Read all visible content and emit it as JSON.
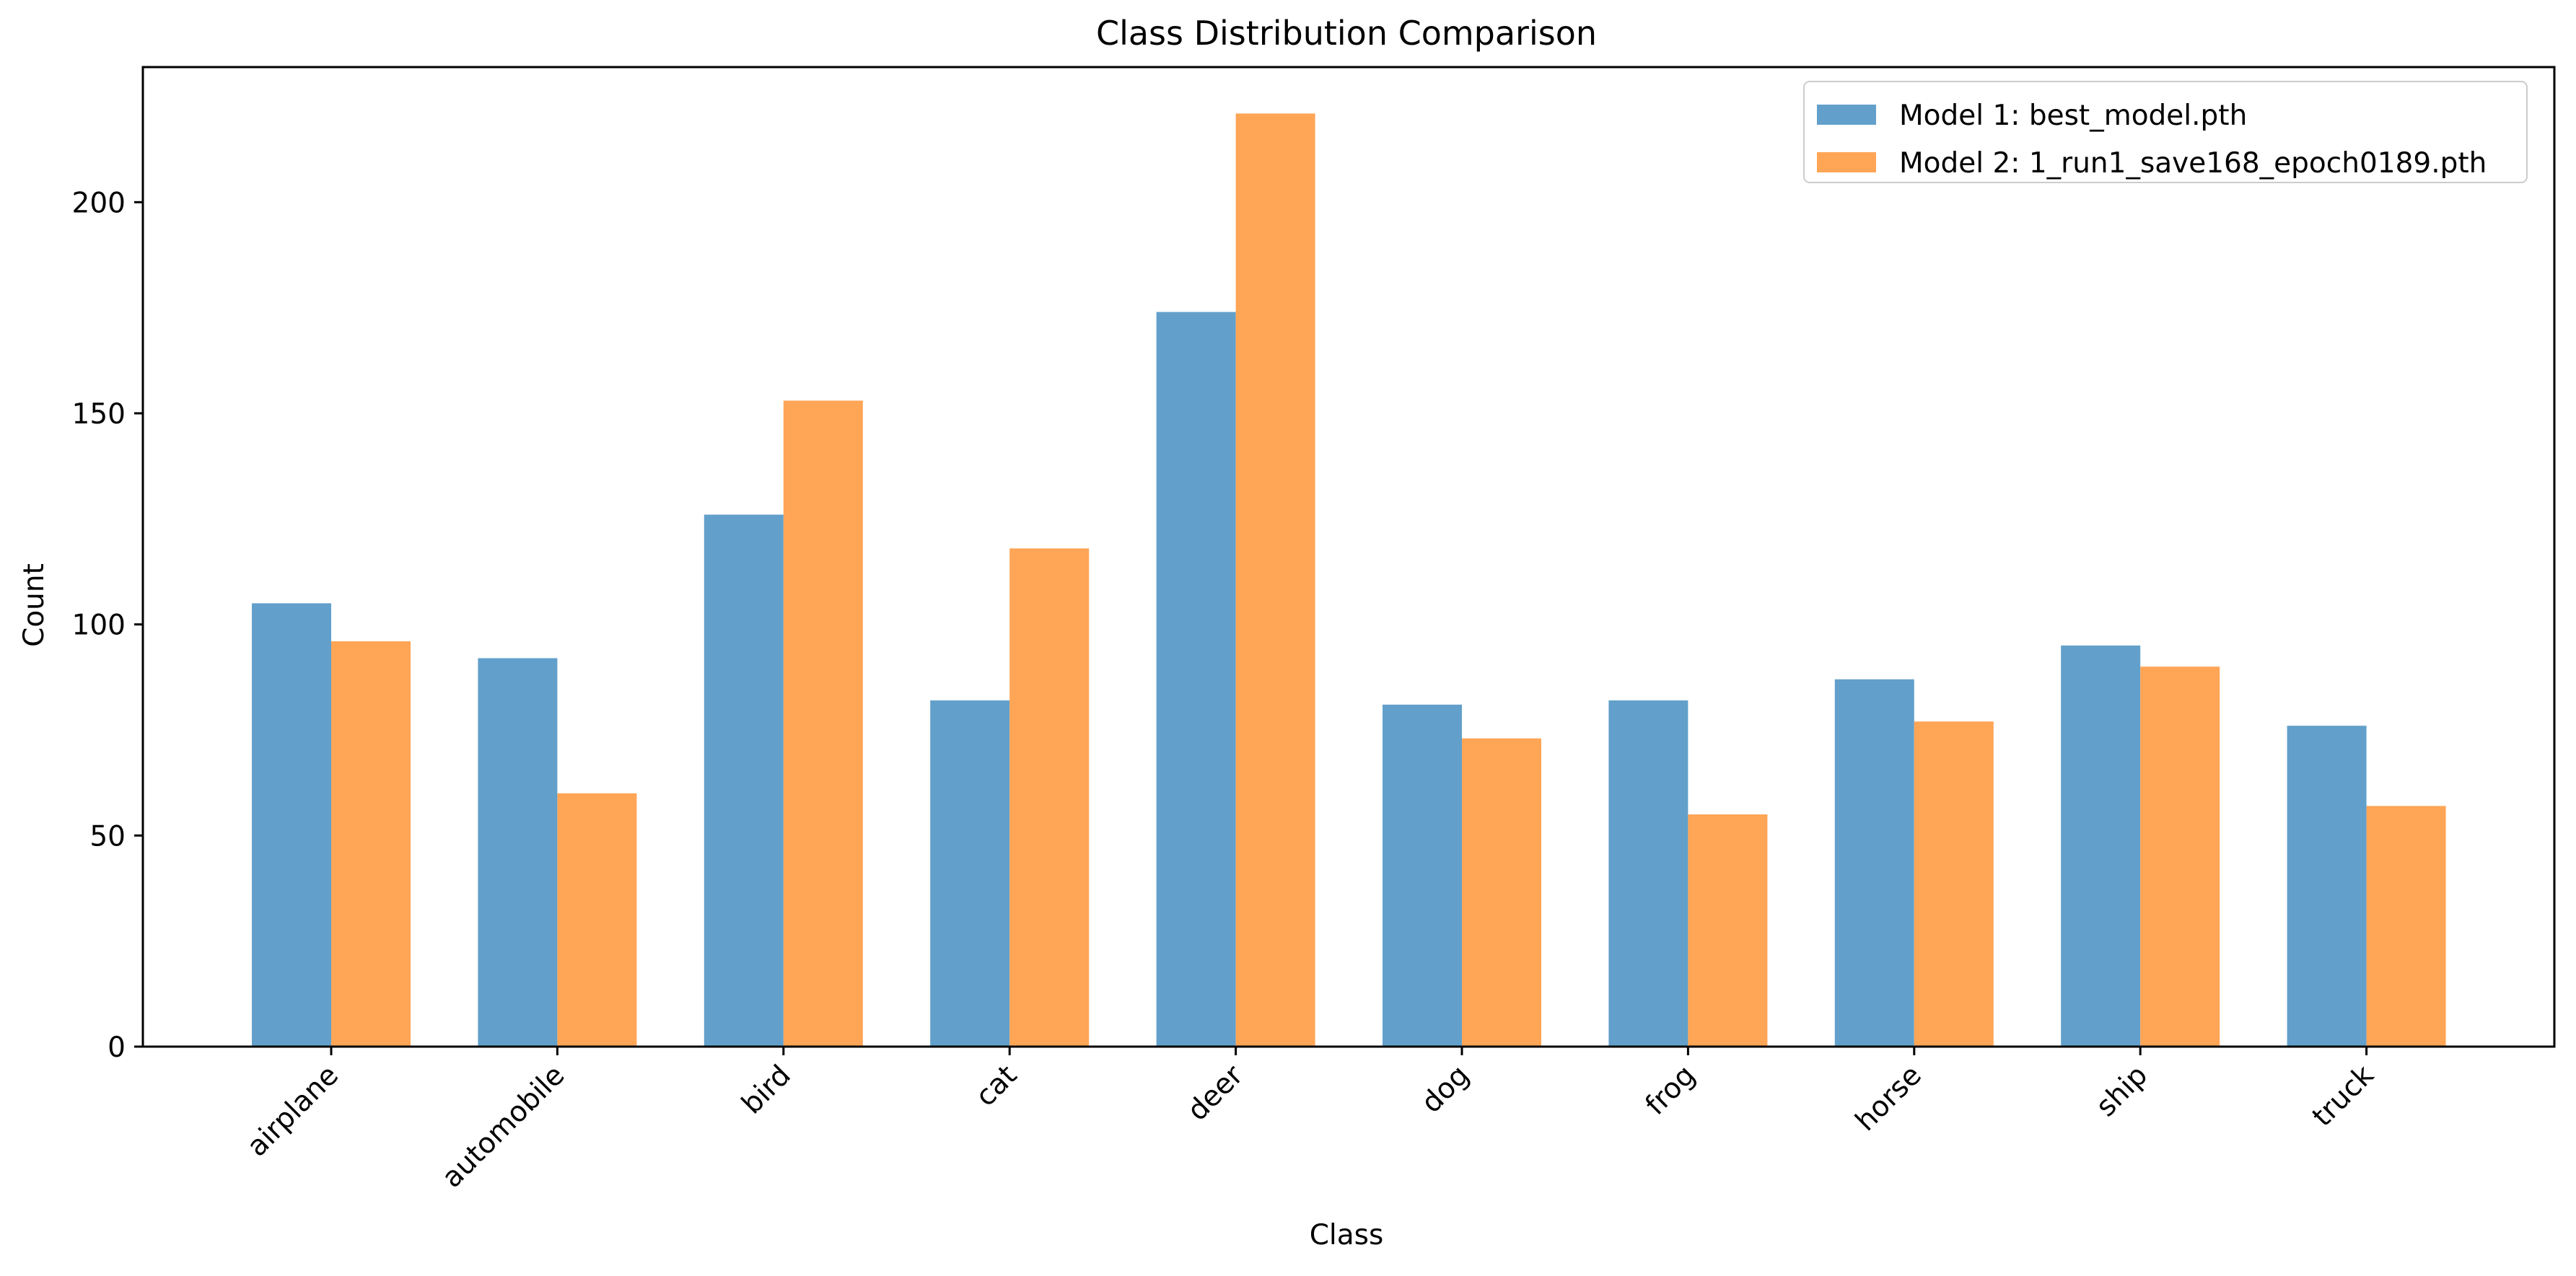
{
  "chart_data": {
    "type": "bar",
    "title": "Class Distribution Comparison",
    "xlabel": "Class",
    "ylabel": "Count",
    "ylim": [
      0,
      232
    ],
    "yticks": [
      0,
      50,
      100,
      150,
      200
    ],
    "grid": false,
    "legend_position": "top-right",
    "categories": [
      "airplane",
      "automobile",
      "bird",
      "cat",
      "deer",
      "dog",
      "frog",
      "horse",
      "ship",
      "truck"
    ],
    "series": [
      {
        "name": "Model 1: best_model.pth",
        "color": "#62a0cb",
        "values": [
          105,
          92,
          126,
          82,
          174,
          81,
          82,
          87,
          95,
          76
        ]
      },
      {
        "name": "Model 2: 1_run1_save168_epoch0189.pth",
        "color": "#ffa556",
        "values": [
          96,
          60,
          153,
          118,
          221,
          73,
          55,
          77,
          90,
          57
        ]
      }
    ]
  }
}
